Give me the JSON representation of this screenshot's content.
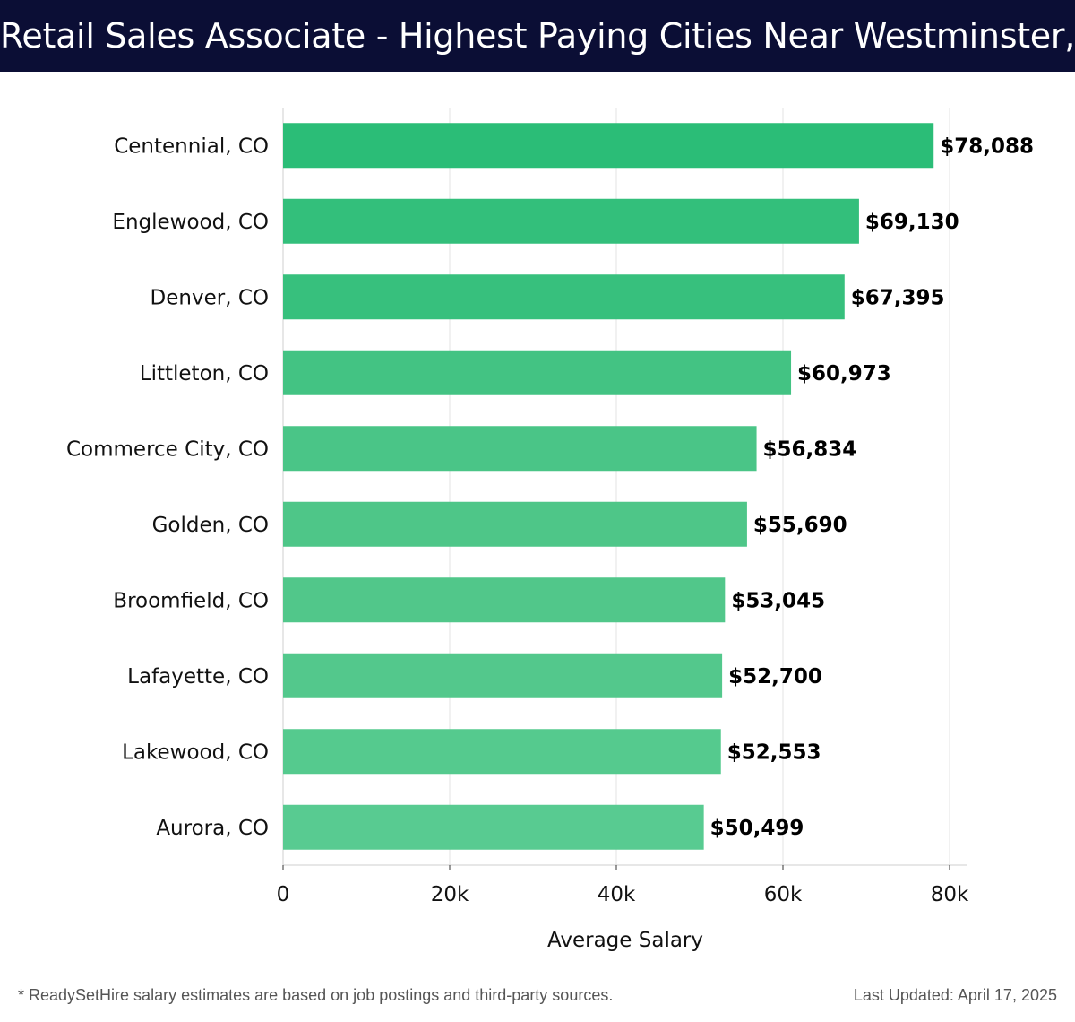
{
  "header": {
    "title": "Retail Sales Associate - Highest Paying Cities Near Westminster, CO"
  },
  "chart_data": {
    "type": "bar",
    "orientation": "horizontal",
    "title": "Retail Sales Associate - Highest Paying Cities Near Westminster, CO",
    "xlabel": "Average Salary",
    "ylabel": "",
    "xlim": [
      0,
      82000
    ],
    "xticks": [
      0,
      20000,
      40000,
      60000,
      80000
    ],
    "xtick_labels": [
      "0",
      "20k",
      "40k",
      "60k",
      "80k"
    ],
    "grid": true,
    "categories": [
      "Centennial, CO",
      "Englewood, CO",
      "Denver, CO",
      "Littleton, CO",
      "Commerce City, CO",
      "Golden, CO",
      "Broomfield, CO",
      "Lafayette, CO",
      "Lakewood, CO",
      "Aurora, CO"
    ],
    "values": [
      78088,
      69130,
      67395,
      60973,
      56834,
      55690,
      53045,
      52700,
      52553,
      50499
    ],
    "value_labels": [
      "$78,088",
      "$69,130",
      "$67,395",
      "$60,973",
      "$56,834",
      "$55,690",
      "$53,045",
      "$52,700",
      "$52,553",
      "$50,499"
    ],
    "bar_colors": [
      "#2bbd77",
      "#33bf7b",
      "#37c07d",
      "#43c383",
      "#4ac587",
      "#4ec688",
      "#51c78a",
      "#53c88c",
      "#55ca8e",
      "#58cb91"
    ]
  },
  "footer": {
    "note": "* ReadySetHire salary estimates are based on job postings and third-party sources.",
    "updated": "Last Updated: April 17, 2025"
  }
}
